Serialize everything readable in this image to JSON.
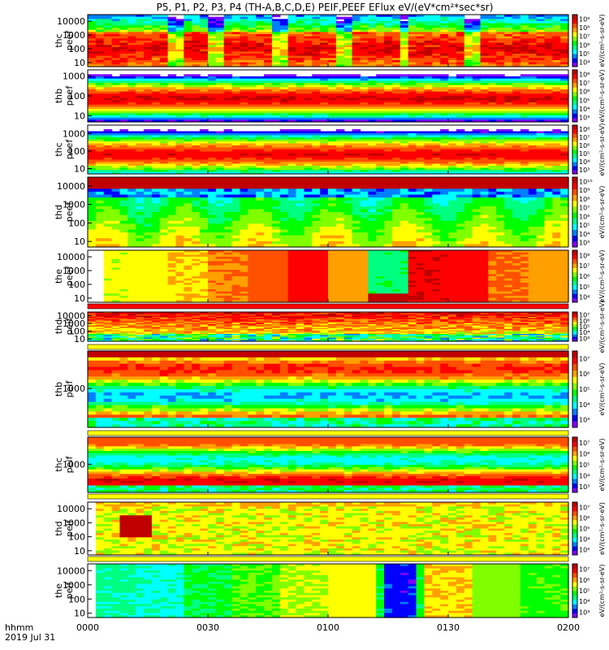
{
  "chart_data": {
    "type": "heatmap",
    "title": "P5, P1, P2, P3, P4 (TH-A,B,C,D,E) PEIF,PEEF EFlux eV/(eV*cm²*sec*sr)",
    "date": "2019 Jul 31",
    "time_label": "hhmm",
    "x_range_minutes": [
      0,
      120
    ],
    "x_ticks": [
      {
        "label": "0000",
        "minutes": 0
      },
      {
        "label": "0030",
        "minutes": 30
      },
      {
        "label": "0100",
        "minutes": 60
      },
      {
        "label": "0130",
        "minutes": 90
      },
      {
        "label": "0200",
        "minutes": 120
      }
    ],
    "y_scale": "log",
    "y_unit": "eV",
    "z_scale": "log",
    "z_unit": "eV/(cm²-s-sr-eV)",
    "colormap": [
      "#8000ff",
      "#0000ff",
      "#0080ff",
      "#00ffff",
      "#00ff80",
      "#00ff00",
      "#80ff00",
      "#ffff00",
      "#ffa000",
      "#ff5000",
      "#ff0000",
      "#c00000"
    ],
    "panels": [
      {
        "id": "thc_peef_a",
        "label_line1": "thc",
        "label_line2": "peef",
        "ylim": [
          5,
          30000
        ],
        "y_ticks": [
          "10",
          "100",
          "1000",
          "10000"
        ],
        "y_tick_values": [
          10,
          100,
          1000,
          10000
        ],
        "zlim_exp": [
          4,
          9
        ],
        "z_ticks": [
          "10⁴",
          "10⁵",
          "10⁶",
          "10⁷",
          "10⁸",
          "10⁹"
        ],
        "colorbar_label": "eV/(cm²-s-sr-eV)"
      },
      {
        "id": "thb_peef",
        "label_line1": "thb",
        "label_line2": "peef",
        "ylim": [
          5,
          2000
        ],
        "y_ticks": [
          "10",
          "100",
          "1000"
        ],
        "y_tick_values": [
          10,
          100,
          1000
        ],
        "zlim_exp": [
          3,
          8
        ],
        "z_ticks": [
          "10³",
          "10⁴",
          "10⁵",
          "10⁶",
          "10⁷",
          "10⁸"
        ],
        "colorbar_label": "eV/(cm²-s-sr-eV)"
      },
      {
        "id": "thc_peef_b",
        "label_line1": "thc",
        "label_line2": "peef",
        "ylim": [
          5,
          3000
        ],
        "y_ticks": [
          "10",
          "100",
          "1000"
        ],
        "y_tick_values": [
          10,
          100,
          1000
        ],
        "zlim_exp": [
          3,
          8
        ],
        "z_ticks": [
          "10³",
          "10⁴",
          "10⁵",
          "10⁶",
          "10⁷",
          "10⁸"
        ],
        "colorbar_label": "eV/(cm²-s-sr-eV)"
      },
      {
        "id": "thd_peef",
        "label_line1": "thd",
        "label_line2": "peef",
        "ylim": [
          5,
          30000
        ],
        "y_ticks": [
          "10",
          "100",
          "1000",
          "10000"
        ],
        "y_tick_values": [
          10,
          100,
          1000,
          10000
        ],
        "zlim_exp": [
          3,
          10
        ],
        "z_ticks": [
          "10³",
          "10⁴",
          "10⁵",
          "10⁶",
          "10⁷",
          "10⁸",
          "10⁹",
          "10¹⁰"
        ],
        "colorbar_label": "eV/(cm²-s-sr-eV)"
      },
      {
        "id": "the_peef",
        "label_line1": "the",
        "label_line2": "peef",
        "ylim": [
          5,
          30000
        ],
        "y_ticks": [
          "10",
          "100",
          "1000",
          "10000"
        ],
        "y_tick_values": [
          10,
          100,
          1000,
          10000
        ],
        "zlim_exp": [
          4,
          8
        ],
        "z_ticks": [
          "10⁴",
          "10⁵",
          "10⁶",
          "10⁷",
          "10⁸"
        ],
        "colorbar_label": "eV/(cm²-s-sr-eV)"
      },
      {
        "id": "thd_peif_a",
        "label_line1": "thd",
        "label_line2": "peif",
        "ylim": [
          5,
          30000
        ],
        "y_ticks": [
          "10",
          "100",
          "1000",
          "10000"
        ],
        "y_tick_values": [
          10,
          100,
          1000,
          10000
        ],
        "zlim_exp": [
          3,
          7
        ],
        "z_ticks": [
          "10³",
          "10⁴",
          "10⁵",
          "10⁶",
          "10⁷"
        ],
        "colorbar_label": "eV/(cm²-s-sr-eV)"
      },
      {
        "id": "thb_peif",
        "label_line1": "thb",
        "label_line2": "peif",
        "ylim": [
          60,
          15000
        ],
        "y_ticks": [
          "1000"
        ],
        "y_tick_values": [
          1000
        ],
        "zlim_exp": [
          3,
          7
        ],
        "z_ticks": [
          "10³",
          "10⁴",
          "10⁵",
          "10⁶",
          "10⁷"
        ],
        "colorbar_label": "eV/(cm²-s-sr-eV)"
      },
      {
        "id": "thc_peif",
        "label_line1": "thc",
        "label_line2": "peif",
        "ylim": [
          60,
          15000
        ],
        "y_ticks": [
          "1000"
        ],
        "y_tick_values": [
          1000
        ],
        "zlim_exp": [
          3,
          7
        ],
        "z_ticks": [
          "10³",
          "10⁴",
          "10⁵",
          "10⁶",
          "10⁷"
        ],
        "colorbar_label": "eV/(cm²-s-sr-eV)"
      },
      {
        "id": "thd_peif_b",
        "label_line1": "thd",
        "label_line2": "peif",
        "ylim": [
          5,
          30000
        ],
        "y_ticks": [
          "10",
          "100",
          "1000",
          "10000"
        ],
        "y_tick_values": [
          10,
          100,
          1000,
          10000
        ],
        "zlim_exp": [
          3,
          7
        ],
        "z_ticks": [
          "10³",
          "10⁴",
          "10⁵",
          "10⁶",
          "10⁷"
        ],
        "colorbar_label": "eV/(cm²-s-sr-eV)"
      },
      {
        "id": "the_peif",
        "label_line1": "the",
        "label_line2": "peif",
        "ylim": [
          5,
          30000
        ],
        "y_ticks": [
          "10",
          "100",
          "1000",
          "10000"
        ],
        "y_tick_values": [
          10,
          100,
          1000,
          10000
        ],
        "zlim_exp": [
          3,
          7
        ],
        "z_ticks": [
          "10³",
          "10⁴",
          "10⁵",
          "10⁶",
          "10⁷"
        ],
        "colorbar_label": "eV/(cm²-s-sr-eV)"
      }
    ]
  }
}
